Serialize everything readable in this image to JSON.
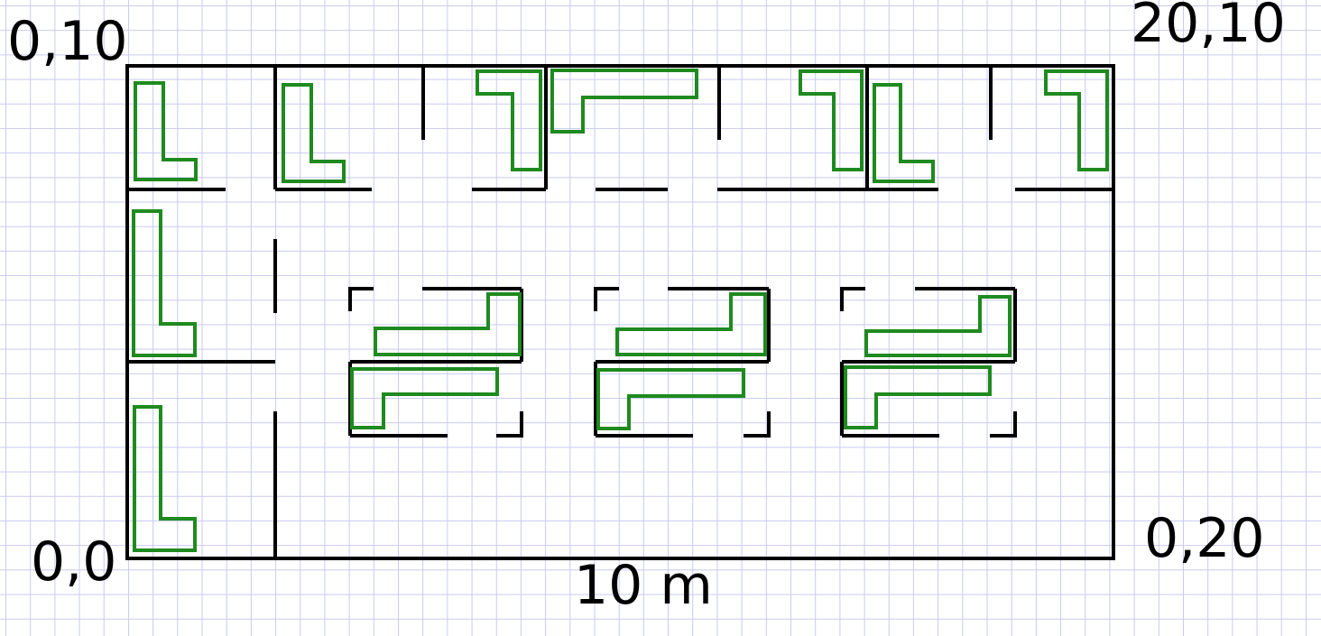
{
  "corner_labels": {
    "top_left": "0,10",
    "top_right": "20,10",
    "bottom_left": "0,0",
    "bottom_right": "0,20"
  },
  "scale_label": "10 m",
  "colors": {
    "background": "#ffffff",
    "grid": "#c9c9f0",
    "walls": "#000000",
    "desks": "#1f8a1f"
  }
}
